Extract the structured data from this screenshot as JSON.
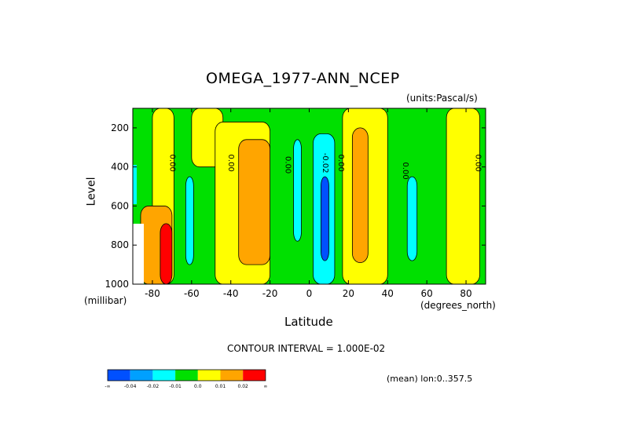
{
  "chart_data": {
    "type": "heatmap",
    "title": "OMEGA_1977-ANN_NCEP",
    "units": "(units:Pascal/s)",
    "xlabel": "Latitude",
    "ylabel": "Level",
    "x_unit": "(degrees_north)",
    "y_unit": "(millibar)",
    "xlim": [
      -90,
      90
    ],
    "ylim": [
      1000,
      100
    ],
    "x_ticks": [
      "-80",
      "-60",
      "-40",
      "-20",
      "0",
      "20",
      "40",
      "60",
      "80"
    ],
    "x_tick_values": [
      -80,
      -60,
      -40,
      -20,
      0,
      20,
      40,
      60,
      80
    ],
    "y_ticks": [
      "200",
      "400",
      "600",
      "800",
      "1000"
    ],
    "y_tick_values": [
      200,
      400,
      600,
      800,
      1000
    ],
    "contour_interval": "CONTOUR INTERVAL = 1.000E-02",
    "mean_note": "(mean) lon:0..357.5",
    "contour_labels": [
      {
        "text": "0.00",
        "lat": -71,
        "lev": 380
      },
      {
        "text": "0.00",
        "lat": -41,
        "lev": 380
      },
      {
        "text": "0.00",
        "lat": -12,
        "lev": 390
      },
      {
        "text": "-0.02",
        "lat": 7,
        "lev": 380
      },
      {
        "text": "0.00",
        "lat": 15,
        "lev": 380
      },
      {
        "text": "0.00",
        "lat": 48,
        "lev": 420
      },
      {
        "text": "0.00",
        "lat": 85,
        "lev": 380
      }
    ],
    "colorbar": {
      "colors": [
        "#0050ff",
        "#00a0ff",
        "#00ffff",
        "#00e000",
        "#ffff00",
        "#ffa500",
        "#ff0000"
      ],
      "labels": [
        "-∞",
        "-0.04",
        "-0.02",
        "-0.01",
        "0.0",
        "0.01",
        "0.02",
        "∞"
      ]
    },
    "regions": [
      {
        "color": "#ffff00",
        "lat": [
          -80,
          -69
        ],
        "lev": [
          100,
          1000
        ]
      },
      {
        "color": "#ffff00",
        "lat": [
          -60,
          -44
        ],
        "lev": [
          100,
          400
        ]
      },
      {
        "color": "#ffff00",
        "lat": [
          -48,
          -20
        ],
        "lev": [
          170,
          1000
        ]
      },
      {
        "color": "#ffa500",
        "lat": [
          -36,
          -20
        ],
        "lev": [
          260,
          900
        ]
      },
      {
        "color": "#00ffff",
        "lat": [
          -63,
          -59
        ],
        "lev": [
          450,
          900
        ]
      },
      {
        "color": "#00ffff",
        "lat": [
          -8,
          -4
        ],
        "lev": [
          260,
          780
        ]
      },
      {
        "color": "#00ffff",
        "lat": [
          2,
          13
        ],
        "lev": [
          230,
          1000
        ]
      },
      {
        "color": "#0050ff",
        "lat": [
          6,
          10
        ],
        "lev": [
          450,
          880
        ]
      },
      {
        "color": "#ffff00",
        "lat": [
          17,
          40
        ],
        "lev": [
          100,
          1000
        ]
      },
      {
        "color": "#ffa500",
        "lat": [
          22,
          30
        ],
        "lev": [
          200,
          890
        ]
      },
      {
        "color": "#00ffff",
        "lat": [
          50,
          55
        ],
        "lev": [
          450,
          880
        ]
      },
      {
        "color": "#ffff00",
        "lat": [
          70,
          87
        ],
        "lev": [
          100,
          1000
        ]
      },
      {
        "color": "#ffa500",
        "lat": [
          -86,
          -70
        ],
        "lev": [
          600,
          1000
        ]
      },
      {
        "color": "#ff0000",
        "lat": [
          -76,
          -70
        ],
        "lev": [
          690,
          1000
        ]
      }
    ]
  }
}
